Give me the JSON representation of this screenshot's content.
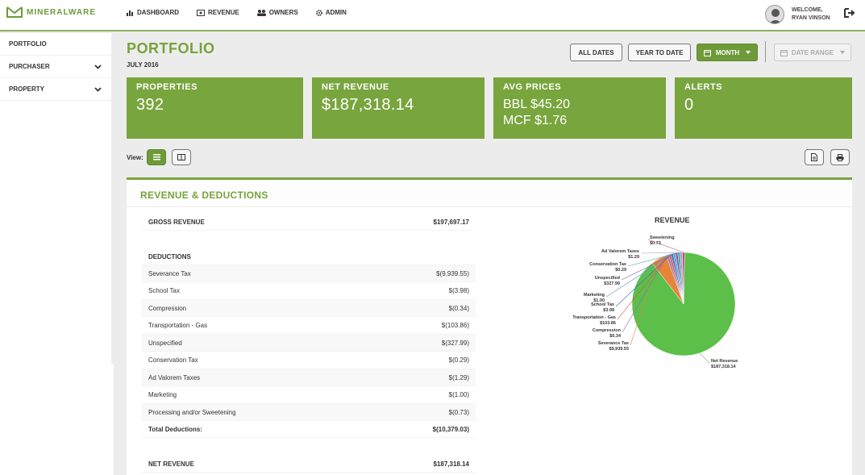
{
  "app": {
    "logo_text": "MINERALWARE"
  },
  "nav": [
    {
      "label": "DASHBOARD",
      "icon": "bar-chart-icon"
    },
    {
      "label": "REVENUE",
      "icon": "money-icon"
    },
    {
      "label": "OWNERS",
      "icon": "users-icon"
    },
    {
      "label": "ADMIN",
      "icon": "gear-icon"
    }
  ],
  "user": {
    "welcome": "WELCOME,",
    "name": "RYAN VINSON"
  },
  "sidebar": {
    "items": [
      {
        "label": "PORTFOLIO"
      },
      {
        "label": "PURCHASER"
      },
      {
        "label": "PROPERTY"
      }
    ]
  },
  "page": {
    "title": "PORTFOLIO",
    "subtitle": "JULY 2016"
  },
  "filters": {
    "all_dates": "ALL DATES",
    "ytd": "YEAR TO DATE",
    "month": "MONTH",
    "date_range": "DATE RANGE"
  },
  "cards": {
    "properties": {
      "label": "PROPERTIES",
      "value": "392"
    },
    "net_revenue": {
      "label": "NET REVENUE",
      "value": "$187,318.14"
    },
    "avg_prices": {
      "label": "AVG PRICES",
      "bbl": "BBL $45.20",
      "mcf": "MCF $1.76"
    },
    "alerts": {
      "label": "ALERTS",
      "value": "0"
    }
  },
  "view": {
    "label": "View:"
  },
  "panel": {
    "title": "REVENUE & DEDUCTIONS",
    "gross_label": "GROSS REVENUE",
    "gross_value": "$197,697.17",
    "deductions_label": "DEDUCTIONS",
    "deductions": [
      {
        "label": "Severance Tax",
        "value": "$(9,939.55)"
      },
      {
        "label": "School Tax",
        "value": "$(3.98)"
      },
      {
        "label": "Compression",
        "value": "$(0.34)"
      },
      {
        "label": "Transportation - Gas",
        "value": "$(103.86)"
      },
      {
        "label": "Unspecified",
        "value": "$(327.99)"
      },
      {
        "label": "Conservation Tax",
        "value": "$(0.29)"
      },
      {
        "label": "Ad Valorem Taxes",
        "value": "$(1.29)"
      },
      {
        "label": "Marketing",
        "value": "$(1.00)"
      },
      {
        "label": "Processing and/or Sweetening",
        "value": "$(0.73)"
      }
    ],
    "total_label": "Total Deductions:",
    "total_value": "$(10,379.03)",
    "net_label": "NET REVENUE",
    "net_value": "$187,318.14"
  },
  "chart_data": {
    "type": "pie",
    "title": "REVENUE",
    "slices": [
      {
        "name": "Net Revenue",
        "label": "$187,318.14",
        "value": 187318.14,
        "color": "#5cbf4a"
      },
      {
        "name": "Severance Tax",
        "label": "$9,939.55",
        "value": 9939.55,
        "color": "#e8843a"
      },
      {
        "name": "Compression",
        "label": "$0.34",
        "value": 0.34,
        "color": "#8a6fb0"
      },
      {
        "name": "Transportation - Gas",
        "label": "$103.86",
        "value": 103.86,
        "color": "#d9534f"
      },
      {
        "name": "School Tax",
        "label": "$3.98",
        "value": 3.98,
        "color": "#3b6db3"
      },
      {
        "name": "Marketing",
        "label": "$1.00",
        "value": 1.0,
        "color": "#5a9bd5"
      },
      {
        "name": "Unspecified",
        "label": "$327.99",
        "value": 327.99,
        "color": "#7a5c9e"
      },
      {
        "name": "Conservation Tax",
        "label": "$0.29",
        "value": 0.29,
        "color": "#46a0a0"
      },
      {
        "name": "Ad Valorem Taxes",
        "label": "$1.29",
        "value": 1.29,
        "color": "#a0a0d0"
      },
      {
        "name": "Sweetening",
        "label": "$0.73",
        "value": 0.73,
        "color": "#c04a7a"
      }
    ]
  }
}
